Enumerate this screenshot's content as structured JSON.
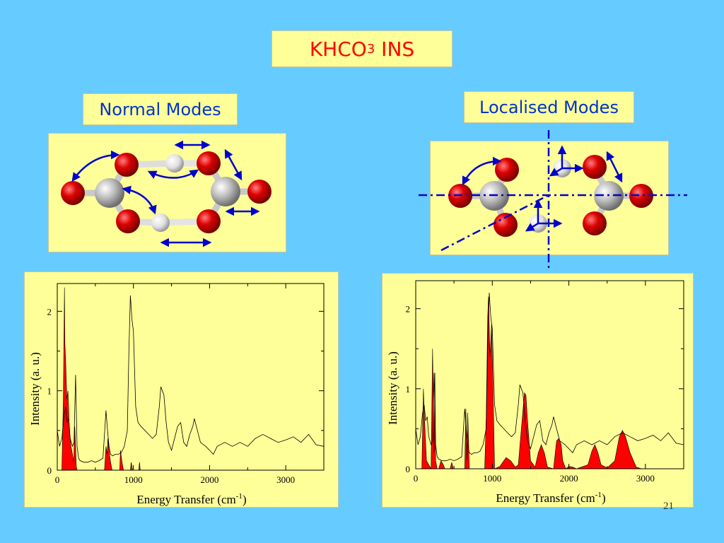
{
  "slide": {
    "title_main": "KHCO",
    "title_sub": "3",
    "title_suffix": " INS",
    "label_normal": "Normal Modes",
    "label_local": "Localised Modes",
    "slide_number": "21"
  },
  "colors": {
    "background": "#66ccff",
    "panel": "#ffff99",
    "title_text": "#ff0000",
    "label_text": "#0033cc",
    "fill_series": "#ff0000",
    "line_series": "#000000",
    "oxygen": "#d40000",
    "carbon": "#b8b8b8",
    "hydrogen": "#e6e6e6",
    "arrow": "#0000cc"
  },
  "chart_data": [
    {
      "type": "area",
      "title": "",
      "xlabel": "Energy Transfer (cm",
      "xlabel_sup": "-1",
      "xlabel_end": ")",
      "ylabel": "Intensity (a. u.)",
      "xlim": [
        0,
        3500
      ],
      "ylim": [
        0,
        2.35
      ],
      "xticks": [
        0,
        1000,
        2000,
        3000
      ],
      "xtick_labels": [
        "0",
        "1000",
        "2000",
        "3000"
      ],
      "yticks": [
        0,
        1,
        2
      ],
      "ytick_labels": [
        "0",
        "1",
        "2"
      ],
      "grid": false,
      "series": [
        {
          "style": "filled",
          "x": [
            0,
            60,
            80,
            95,
            100,
            110,
            125,
            140,
            160,
            180,
            200,
            215,
            230,
            240,
            250,
            260,
            290,
            600,
            620,
            640,
            655,
            665,
            680,
            700,
            720,
            800,
            820,
            830,
            850,
            870,
            900,
            960,
            970,
            980,
            990,
            1050,
            1070,
            1080,
            1090,
            1100,
            3500
          ],
          "y": [
            0,
            0,
            0.9,
            2.3,
            1.6,
            1.4,
            0.9,
            1.0,
            0.5,
            0.3,
            0.2,
            0.1,
            0.55,
            0.3,
            0.05,
            0,
            0,
            0,
            0,
            0.3,
            0.2,
            0.4,
            0.25,
            0.1,
            0,
            0,
            0,
            0.25,
            0.1,
            0,
            0,
            0,
            0.1,
            0.05,
            0,
            0,
            0,
            0.1,
            0,
            0,
            0
          ]
        },
        {
          "style": "line",
          "x": [
            0,
            30,
            60,
            90,
            110,
            130,
            150,
            170,
            200,
            220,
            240,
            260,
            280,
            300,
            350,
            400,
            450,
            500,
            550,
            600,
            640,
            660,
            680,
            700,
            730,
            760,
            800,
            840,
            880,
            920,
            940,
            960,
            980,
            1000,
            1030,
            1060,
            1100,
            1150,
            1200,
            1250,
            1300,
            1340,
            1360,
            1380,
            1400,
            1430,
            1460,
            1500,
            1540,
            1580,
            1620,
            1660,
            1700,
            1740,
            1780,
            1800,
            1840,
            1880,
            1950,
            2000,
            2050,
            2100,
            2200,
            2300,
            2400,
            2500,
            2600,
            2700,
            2800,
            2900,
            3000,
            3100,
            3200,
            3300,
            3400,
            3500
          ],
          "y": [
            0.5,
            0.3,
            0.4,
            0.7,
            0.8,
            0.6,
            0.65,
            0.4,
            0.3,
            0.35,
            1.2,
            0.3,
            0.15,
            0.12,
            0.1,
            0.1,
            0.12,
            0.1,
            0.12,
            0.15,
            0.75,
            0.5,
            0.3,
            0.2,
            0.18,
            0.2,
            0.2,
            0.22,
            0.3,
            0.5,
            1.5,
            2.2,
            1.9,
            1.75,
            0.8,
            0.6,
            0.55,
            0.5,
            0.45,
            0.4,
            0.45,
            0.8,
            1.05,
            1.0,
            0.95,
            0.6,
            0.35,
            0.25,
            0.4,
            0.55,
            0.6,
            0.35,
            0.3,
            0.45,
            0.55,
            0.65,
            0.5,
            0.35,
            0.3,
            0.25,
            0.2,
            0.3,
            0.35,
            0.3,
            0.35,
            0.3,
            0.4,
            0.45,
            0.4,
            0.35,
            0.38,
            0.42,
            0.35,
            0.45,
            0.32,
            0.3
          ]
        }
      ]
    },
    {
      "type": "area",
      "title": "",
      "xlabel": "Energy Transfer (cm",
      "xlabel_sup": "-1",
      "xlabel_end": ")",
      "ylabel": "Intensity (a. u.)",
      "xlim": [
        0,
        3500
      ],
      "ylim": [
        0,
        2.35
      ],
      "xticks": [
        0,
        1000,
        2000,
        3000
      ],
      "xtick_labels": [
        "0",
        "1000",
        "2000",
        "3000"
      ],
      "yticks": [
        0,
        1,
        2
      ],
      "ytick_labels": [
        "0",
        "1",
        "2"
      ],
      "grid": false,
      "series": [
        {
          "style": "filled",
          "x": [
            0,
            80,
            100,
            120,
            140,
            200,
            220,
            240,
            250,
            260,
            280,
            300,
            330,
            360,
            380,
            450,
            470,
            490,
            640,
            655,
            670,
            680,
            700,
            900,
            920,
            940,
            950,
            970,
            990,
            1010,
            1030,
            1100,
            1180,
            1240,
            1300,
            1340,
            1380,
            1420,
            1440,
            1460,
            1500,
            1560,
            1600,
            1640,
            1680,
            1720,
            1800,
            1840,
            1870,
            1900,
            1920,
            1960,
            2000,
            2050,
            2100,
            2250,
            2300,
            2340,
            2380,
            2420,
            2500,
            2600,
            2660,
            2700,
            2740,
            2800,
            2880,
            2950,
            3500
          ],
          "y": [
            0,
            0,
            1.0,
            0.5,
            0.1,
            0,
            1.5,
            0.2,
            1.2,
            0.1,
            0,
            0,
            0.1,
            0.05,
            0,
            0,
            0.08,
            0,
            0,
            0.75,
            0.1,
            0.7,
            0,
            0,
            0.6,
            1.9,
            2.15,
            1.4,
            1.8,
            1.0,
            0,
            0.03,
            0.14,
            0.1,
            0.02,
            0.05,
            0.5,
            0.95,
            0.92,
            0.6,
            0.1,
            0.02,
            0.2,
            0.3,
            0.2,
            0.02,
            0,
            0.35,
            0.38,
            0.3,
            0.1,
            0,
            0.03,
            0.02,
            0,
            0.05,
            0.22,
            0.3,
            0.2,
            0.05,
            0.01,
            0.1,
            0.4,
            0.48,
            0.4,
            0.2,
            0.02,
            0,
            0
          ]
        },
        {
          "style": "line",
          "x": [
            0,
            30,
            60,
            90,
            110,
            130,
            150,
            170,
            200,
            220,
            240,
            260,
            280,
            300,
            350,
            400,
            450,
            500,
            550,
            600,
            640,
            660,
            680,
            700,
            730,
            760,
            800,
            840,
            880,
            920,
            940,
            960,
            980,
            1000,
            1030,
            1060,
            1100,
            1150,
            1200,
            1250,
            1300,
            1340,
            1360,
            1380,
            1400,
            1430,
            1460,
            1500,
            1540,
            1580,
            1620,
            1660,
            1700,
            1740,
            1780,
            1800,
            1840,
            1880,
            1950,
            2000,
            2050,
            2100,
            2200,
            2300,
            2400,
            2500,
            2600,
            2700,
            2800,
            2900,
            3000,
            3100,
            3200,
            3300,
            3400,
            3500
          ],
          "y": [
            0.5,
            0.3,
            0.4,
            0.7,
            0.8,
            0.6,
            0.65,
            0.4,
            0.3,
            0.35,
            1.2,
            0.3,
            0.15,
            0.12,
            0.1,
            0.1,
            0.12,
            0.1,
            0.12,
            0.15,
            0.75,
            0.5,
            0.3,
            0.2,
            0.18,
            0.2,
            0.2,
            0.22,
            0.3,
            0.5,
            1.5,
            2.2,
            1.9,
            1.75,
            0.8,
            0.6,
            0.55,
            0.5,
            0.45,
            0.4,
            0.45,
            0.8,
            1.05,
            1.0,
            0.95,
            0.6,
            0.35,
            0.25,
            0.4,
            0.55,
            0.6,
            0.35,
            0.3,
            0.45,
            0.55,
            0.65,
            0.5,
            0.35,
            0.3,
            0.25,
            0.2,
            0.3,
            0.35,
            0.3,
            0.35,
            0.3,
            0.4,
            0.45,
            0.4,
            0.35,
            0.38,
            0.42,
            0.35,
            0.45,
            0.32,
            0.3
          ]
        }
      ]
    }
  ]
}
